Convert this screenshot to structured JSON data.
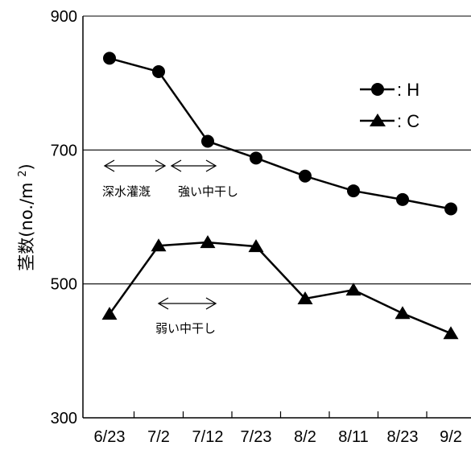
{
  "chart_data": {
    "type": "line",
    "categories": [
      "6/23",
      "7/2",
      "7/12",
      "7/23",
      "8/2",
      "8/11",
      "8/23",
      "9/2"
    ],
    "series": [
      {
        "name": "H",
        "marker": "circle",
        "values": [
          837,
          817,
          713,
          688,
          661,
          639,
          626,
          612
        ]
      },
      {
        "name": "C",
        "marker": "triangle",
        "values": [
          455,
          557,
          562,
          556,
          478,
          491,
          456,
          426
        ]
      }
    ],
    "ylabel": "茎数(no./m2)",
    "ylim": [
      300,
      900
    ],
    "yticks": [
      "900",
      "700",
      "500",
      "300"
    ],
    "gridlines": [
      700,
      500
    ],
    "legend": {
      "placement": "top-right",
      "entries": [
        ": H",
        ": C"
      ]
    },
    "annotations": [
      {
        "id": "deep",
        "text": "深水灌漑"
      },
      {
        "id": "strong",
        "text": "強い中干し"
      },
      {
        "id": "weak",
        "text": "弱い中干し"
      }
    ],
    "color": "#000000"
  }
}
